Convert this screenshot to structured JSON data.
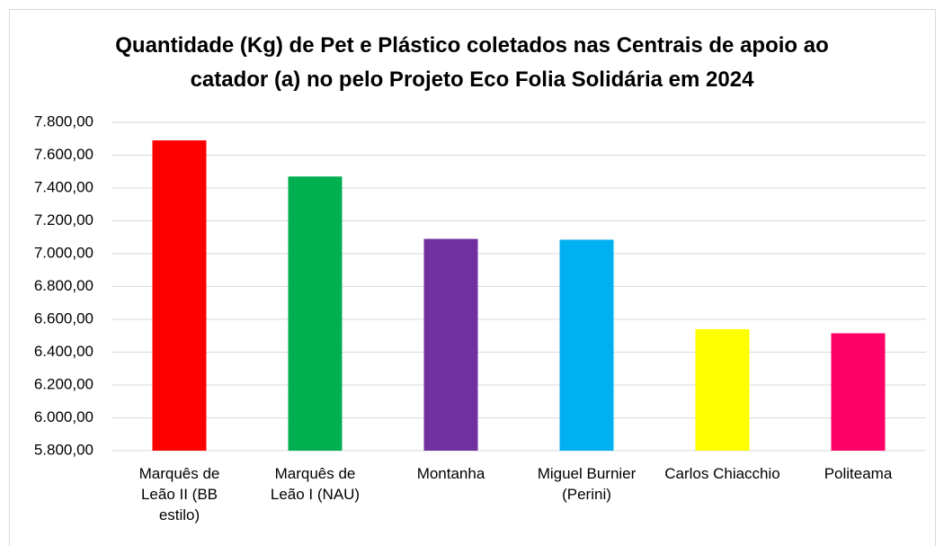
{
  "chart_data": {
    "type": "bar",
    "title": "Quantidade (Kg) de Pet e Plástico coletados nas Centrais de apoio ao catador (a) no pelo Projeto Eco Folia Solidária em 2024",
    "categories": [
      "Marquês de Leão II (BB estilo)",
      "Marquês de Leão I (NAU)",
      "Montanha",
      "Miguel Burnier (Perini)",
      "Carlos Chiacchio",
      "Politeama"
    ],
    "values": [
      7690,
      7470,
      7090,
      7085,
      6540,
      6515
    ],
    "colors": [
      "#ff0000",
      "#00b050",
      "#7030a0",
      "#00b0f0",
      "#ffff00",
      "#ff0066"
    ],
    "ylim": [
      5800,
      7800
    ],
    "yticks": [
      {
        "value": 5800,
        "label": "5.800,00"
      },
      {
        "value": 6000,
        "label": "6.000,00"
      },
      {
        "value": 6200,
        "label": "6.200,00"
      },
      {
        "value": 6400,
        "label": "6.400,00"
      },
      {
        "value": 6600,
        "label": "6.600,00"
      },
      {
        "value": 6800,
        "label": "6.800,00"
      },
      {
        "value": 7000,
        "label": "7.000,00"
      },
      {
        "value": 7200,
        "label": "7.200,00"
      },
      {
        "value": 7400,
        "label": "7.400,00"
      },
      {
        "value": 7600,
        "label": "7.600,00"
      },
      {
        "value": 7800,
        "label": "7.800,00"
      }
    ],
    "grid": true
  }
}
